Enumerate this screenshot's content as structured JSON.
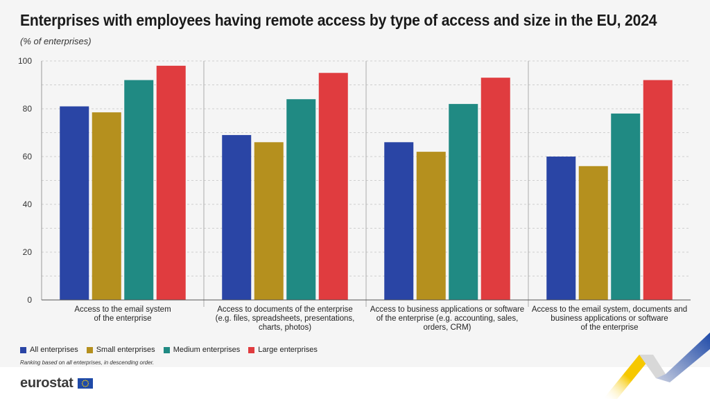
{
  "header": {
    "title": "Enterprises with employees having remote access by type of access and size in the EU, 2024",
    "subtitle": "(% of enterprises)"
  },
  "colors": {
    "all": "#2a45a5",
    "small": "#b5901e",
    "medium": "#208a83",
    "large": "#e03c3f"
  },
  "chart_data": {
    "type": "bar",
    "title": "Enterprises with employees having remote access by type of access and size in the EU, 2024",
    "ylabel": "% of enterprises",
    "ylim": [
      0,
      100
    ],
    "yticks": [
      0,
      20,
      40,
      60,
      80,
      100
    ],
    "categories": [
      [
        "Access to the email system",
        "of the enterprise"
      ],
      [
        "Access to documents of the enterprise",
        "(e.g. files, spreadsheets, presentations,",
        "charts, photos)"
      ],
      [
        "Access to business applications or software",
        "of the enterprise (e.g. accounting, sales,",
        "orders, CRM)"
      ],
      [
        "Access to the email system, documents and",
        "business applications or software",
        "of the enterprise"
      ]
    ],
    "series": [
      {
        "name": "All enterprises",
        "key": "all",
        "values": [
          81,
          69,
          66,
          60
        ]
      },
      {
        "name": "Small enterprises",
        "key": "small",
        "values": [
          78.5,
          66,
          62,
          56
        ]
      },
      {
        "name": "Medium enterprises",
        "key": "medium",
        "values": [
          92,
          84,
          82,
          78
        ]
      },
      {
        "name": "Large enterprises",
        "key": "large",
        "values": [
          98,
          95,
          93,
          92
        ]
      }
    ]
  },
  "legend": {
    "items": [
      "All enterprises",
      "Small enterprises",
      "Medium enterprises",
      "Large enterprises"
    ]
  },
  "note": "Ranking based on all enterprises, in descending order.",
  "footer": {
    "logo_text": "eurostat"
  }
}
